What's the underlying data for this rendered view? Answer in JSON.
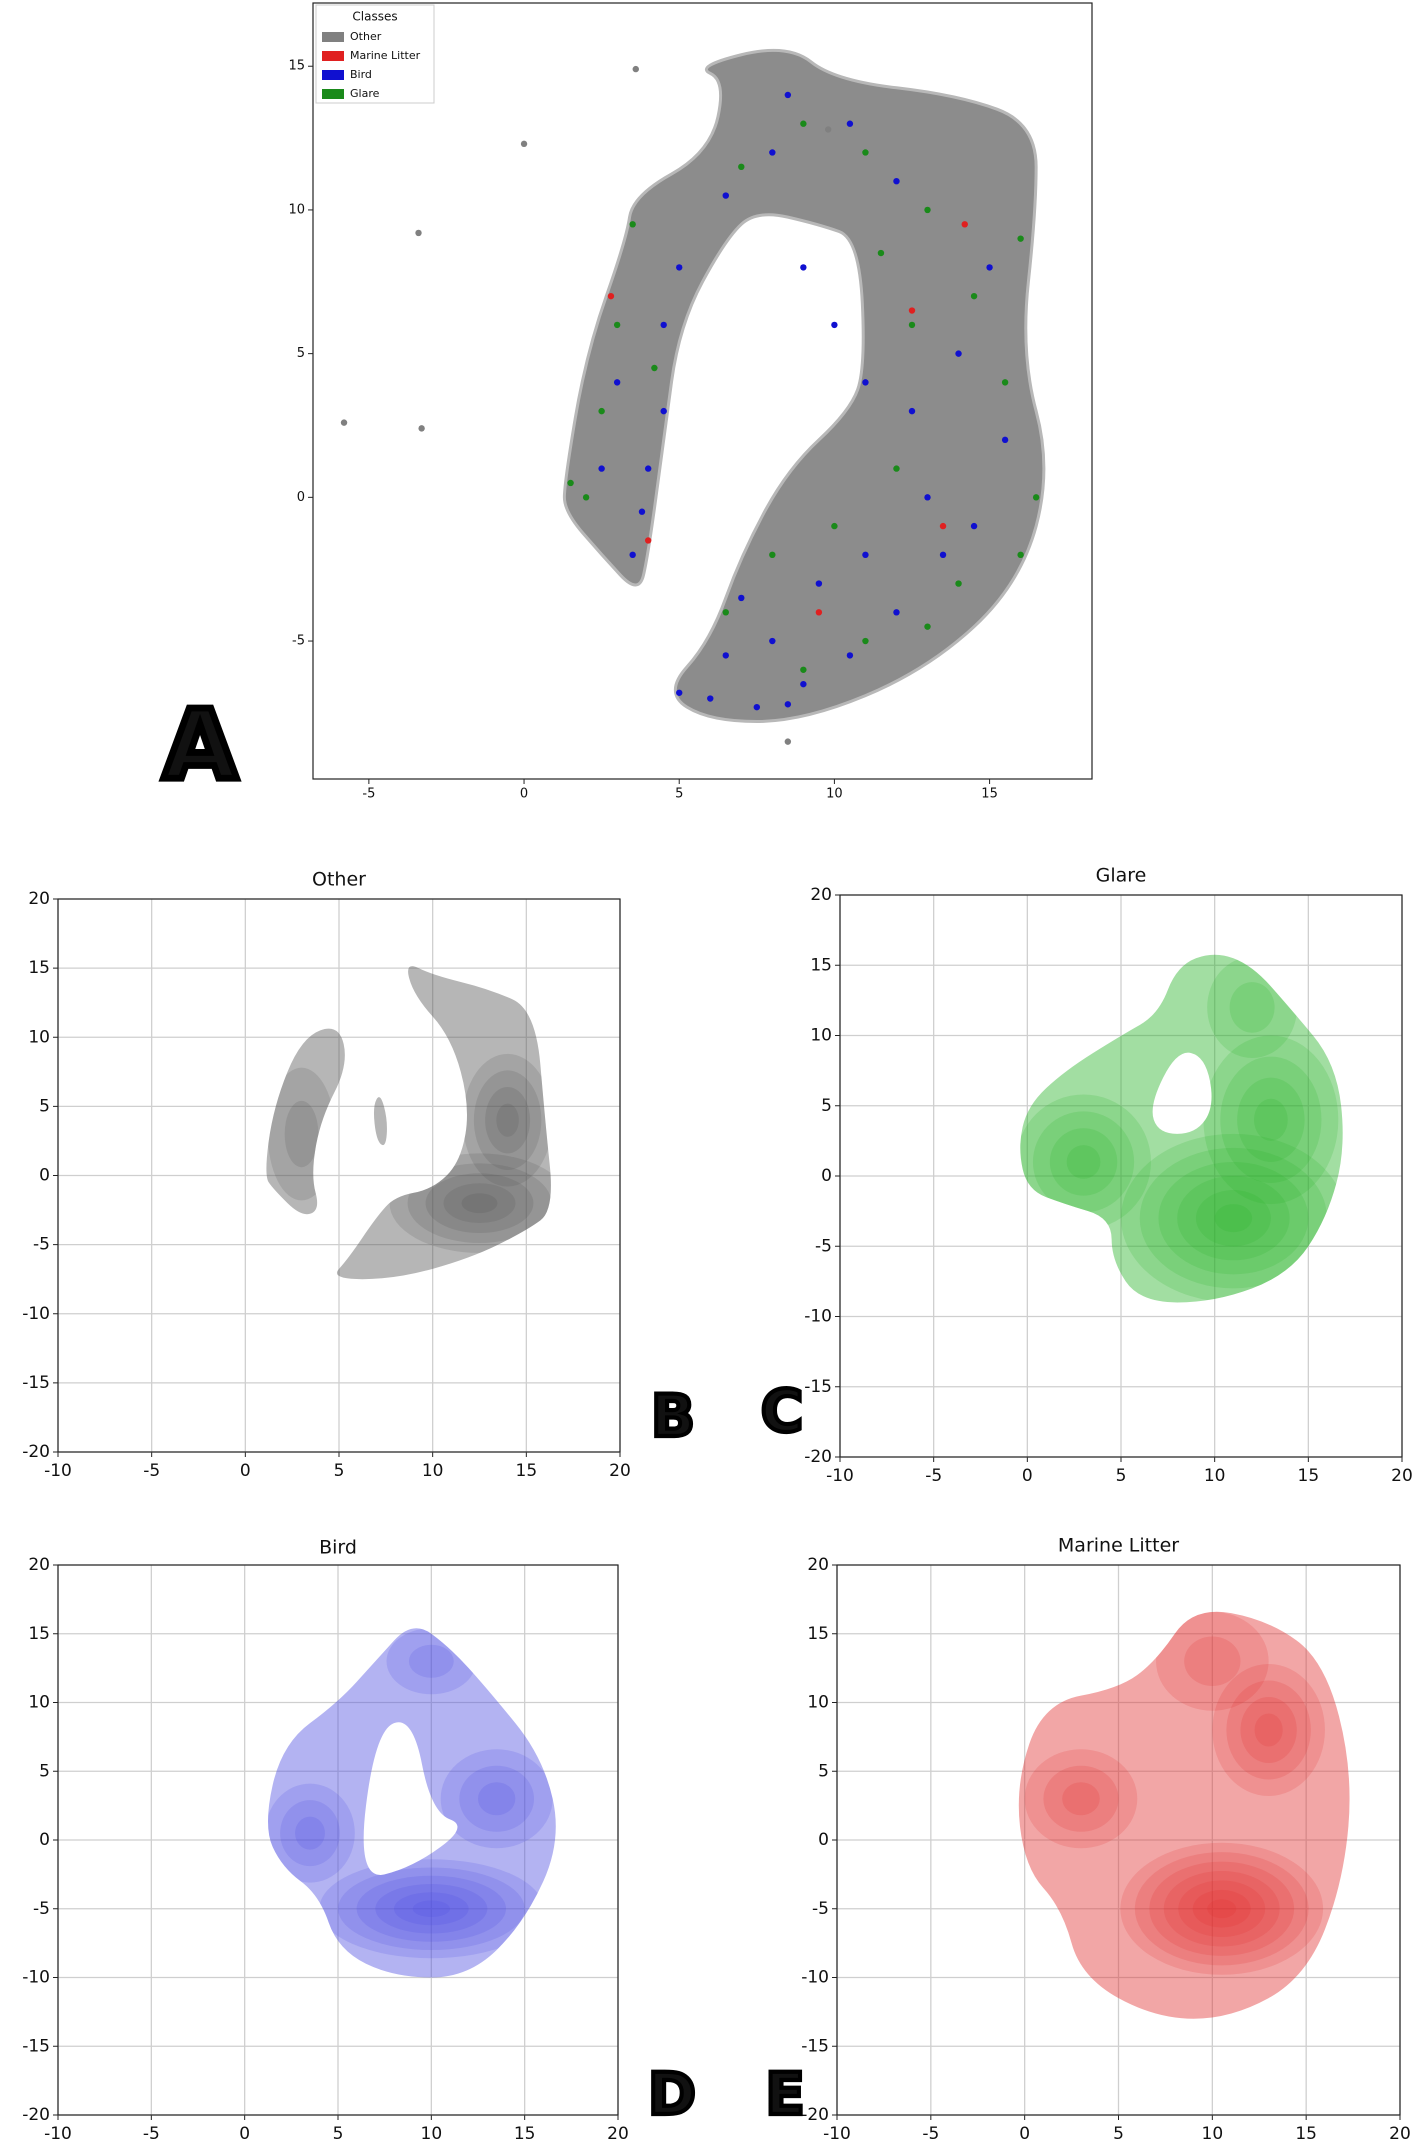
{
  "chart_data": [
    {
      "type": "scatter",
      "panel_label": "A",
      "legend_title": "Classes",
      "legend": "upper left",
      "grid": false,
      "xlim": [
        -6.8,
        18.3
      ],
      "ylim": [
        -9.8,
        17.2
      ],
      "xticks": [
        -5,
        0,
        5,
        10,
        15
      ],
      "yticks": [
        -5,
        0,
        5,
        10,
        15
      ],
      "series": [
        {
          "name": "Other",
          "color": "#808080",
          "x": [
            -5.8,
            -3.4,
            -3.3,
            0,
            3.6,
            8.5,
            9.8
          ],
          "y": [
            2.6,
            9.2,
            2.4,
            12.3,
            14.9,
            -8.5,
            12.8
          ]
        },
        {
          "name": "Marine Litter",
          "color": "#e02020",
          "x": [
            2.8,
            14.2,
            12.5,
            9.5,
            4,
            13.5
          ],
          "y": [
            7,
            9.5,
            6.5,
            -4,
            -1.5,
            -1
          ]
        },
        {
          "name": "Bird",
          "color": "#1010d0",
          "x": [
            3.5,
            4,
            4.5,
            3,
            4.5,
            5,
            6.5,
            8,
            8.5,
            9,
            10,
            11,
            12.5,
            13,
            14,
            15,
            12,
            10.5,
            6,
            7.5,
            9,
            10.5,
            12,
            13.5,
            8,
            6.5,
            9.5,
            11,
            7,
            14.5,
            15.5,
            2.5,
            3.8,
            5,
            8.5
          ],
          "y": [
            -2,
            1,
            3,
            4,
            6,
            8,
            10.5,
            12,
            14,
            8,
            6,
            4,
            3,
            0,
            5,
            8,
            11,
            13,
            -7,
            -7.3,
            -6.5,
            -5.5,
            -4,
            -2,
            -5,
            -5.5,
            -3,
            -2,
            -3.5,
            -1,
            2,
            1,
            -0.5,
            -6.8,
            -7.2
          ]
        },
        {
          "name": "Glare",
          "color": "#1a8a1a",
          "x": [
            2,
            2.5,
            3,
            3.5,
            4.2,
            7,
            9,
            11,
            13,
            14.5,
            16,
            15.5,
            16.5,
            16,
            12,
            10,
            8,
            6.5,
            11,
            13,
            9,
            14,
            12.5,
            11.5,
            1.5
          ],
          "y": [
            0,
            3,
            6,
            9.5,
            4.5,
            11.5,
            13,
            12,
            10,
            7,
            9,
            4,
            0,
            -2,
            1,
            -1,
            -2,
            -4,
            -5,
            -4.5,
            -6,
            -3,
            6,
            8.5,
            0.5
          ]
        }
      ]
    },
    {
      "type": "kde",
      "title": "Other",
      "panel_label": "B",
      "color": "#505050",
      "grid": true,
      "xlim": [
        -10,
        20
      ],
      "ylim": [
        -20,
        20
      ],
      "xticks": [
        -10,
        -5,
        0,
        5,
        10,
        15,
        20
      ],
      "yticks": [
        -20,
        -15,
        -10,
        -5,
        0,
        5,
        10,
        15,
        20
      ]
    },
    {
      "type": "kde",
      "title": "Glare",
      "panel_label": "C",
      "color": "#22b022",
      "grid": true,
      "xlim": [
        -10,
        20
      ],
      "ylim": [
        -20,
        20
      ],
      "xticks": [
        -10,
        -5,
        0,
        5,
        10,
        15,
        20
      ],
      "yticks": [
        -20,
        -15,
        -10,
        -5,
        0,
        5,
        10,
        15,
        20
      ]
    },
    {
      "type": "kde",
      "title": "Bird",
      "panel_label": "D",
      "color": "#4a4ae0",
      "grid": true,
      "xlim": [
        -10,
        20
      ],
      "ylim": [
        -20,
        20
      ],
      "xticks": [
        -10,
        -5,
        0,
        5,
        10,
        15,
        20
      ],
      "yticks": [
        -20,
        -15,
        -10,
        -5,
        0,
        5,
        10,
        15,
        20
      ]
    },
    {
      "type": "kde",
      "title": "Marine Litter",
      "panel_label": "E",
      "color": "#e02a2a",
      "grid": true,
      "xlim": [
        -10,
        20
      ],
      "ylim": [
        -20,
        20
      ],
      "xticks": [
        -10,
        -5,
        0,
        5,
        10,
        15,
        20
      ],
      "yticks": [
        -20,
        -15,
        -10,
        -5,
        0,
        5,
        10,
        15,
        20
      ]
    }
  ]
}
